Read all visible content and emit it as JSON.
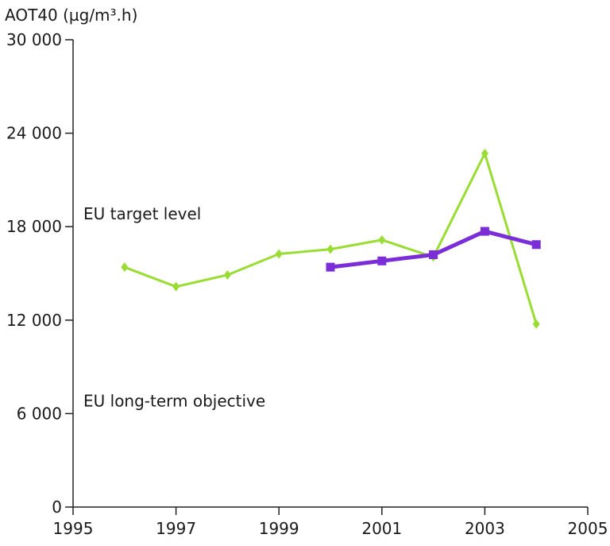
{
  "chart_data": {
    "type": "line",
    "ylabel": "AOT40 (µg/m³.h)",
    "xlim": [
      1995,
      2005
    ],
    "ylim": [
      0,
      30000
    ],
    "x_ticks": [
      1995,
      1997,
      1999,
      2001,
      2003,
      2005
    ],
    "y_ticks": [
      0,
      6000,
      12000,
      18000,
      24000,
      30000
    ],
    "y_tick_labels": [
      "0",
      "6 000",
      "12 000",
      "18 000",
      "24 000",
      "30 000"
    ],
    "grid": false,
    "series": [
      {
        "color": "#99dd33",
        "marker": "diamond",
        "x": [
          1996,
          1997,
          1998,
          1999,
          2000,
          2001,
          2002,
          2003,
          2004
        ],
        "values": [
          15400,
          14150,
          14900,
          16250,
          16550,
          17150,
          16050,
          22700,
          11750
        ]
      },
      {
        "color": "#7b2ed8",
        "marker": "square",
        "x": [
          2000,
          2001,
          2002,
          2003,
          2004
        ],
        "values": [
          15400,
          15800,
          16200,
          17700,
          16850
        ]
      }
    ],
    "annotations": [
      {
        "text": "EU target level",
        "value": 18000
      },
      {
        "text": "EU long-term objective",
        "value": 6000
      }
    ]
  }
}
